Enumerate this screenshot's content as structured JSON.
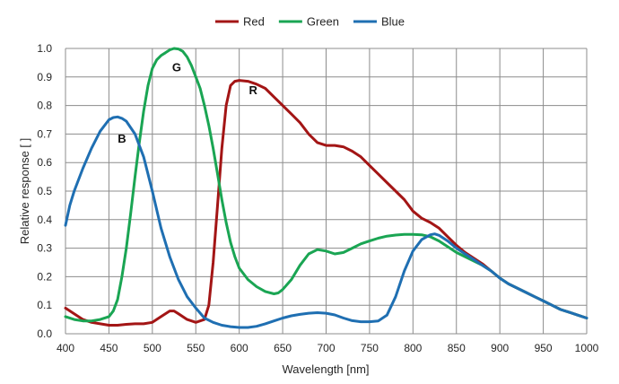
{
  "chart_data": {
    "type": "line",
    "xlabel": "Wavelength [nm]",
    "ylabel": "Relative response [ ]",
    "xlim": [
      400,
      1000
    ],
    "ylim": [
      0,
      1.0
    ],
    "x_ticks": [
      "400",
      "450",
      "500",
      "550",
      "600",
      "650",
      "700",
      "750",
      "800",
      "850",
      "900",
      "950",
      "1000"
    ],
    "y_ticks": [
      "0.0",
      "0.1",
      "0.2",
      "0.3",
      "0.4",
      "0.5",
      "0.6",
      "0.7",
      "0.8",
      "0.9",
      "1.0"
    ],
    "grid": true,
    "legend_position": "top-center",
    "series": [
      {
        "name": "Red",
        "color": "#a31515",
        "points": [
          [
            400,
            0.09
          ],
          [
            410,
            0.07
          ],
          [
            420,
            0.05
          ],
          [
            430,
            0.04
          ],
          [
            440,
            0.035
          ],
          [
            450,
            0.03
          ],
          [
            460,
            0.03
          ],
          [
            470,
            0.033
          ],
          [
            480,
            0.035
          ],
          [
            490,
            0.035
          ],
          [
            500,
            0.04
          ],
          [
            510,
            0.06
          ],
          [
            520,
            0.08
          ],
          [
            525,
            0.08
          ],
          [
            530,
            0.07
          ],
          [
            540,
            0.05
          ],
          [
            550,
            0.04
          ],
          [
            560,
            0.05
          ],
          [
            565,
            0.1
          ],
          [
            570,
            0.25
          ],
          [
            575,
            0.45
          ],
          [
            580,
            0.65
          ],
          [
            585,
            0.8
          ],
          [
            590,
            0.87
          ],
          [
            595,
            0.885
          ],
          [
            600,
            0.888
          ],
          [
            610,
            0.885
          ],
          [
            620,
            0.875
          ],
          [
            630,
            0.86
          ],
          [
            640,
            0.83
          ],
          [
            650,
            0.8
          ],
          [
            660,
            0.77
          ],
          [
            670,
            0.74
          ],
          [
            680,
            0.7
          ],
          [
            690,
            0.67
          ],
          [
            700,
            0.66
          ],
          [
            710,
            0.66
          ],
          [
            720,
            0.655
          ],
          [
            730,
            0.64
          ],
          [
            740,
            0.62
          ],
          [
            750,
            0.59
          ],
          [
            760,
            0.56
          ],
          [
            770,
            0.53
          ],
          [
            780,
            0.5
          ],
          [
            790,
            0.47
          ],
          [
            800,
            0.43
          ],
          [
            810,
            0.405
          ],
          [
            820,
            0.39
          ],
          [
            830,
            0.37
          ],
          [
            840,
            0.34
          ],
          [
            850,
            0.31
          ],
          [
            860,
            0.285
          ],
          [
            870,
            0.265
          ],
          [
            880,
            0.245
          ],
          [
            890,
            0.22
          ],
          [
            900,
            0.195
          ],
          [
            910,
            0.175
          ],
          [
            920,
            0.16
          ],
          [
            930,
            0.145
          ],
          [
            940,
            0.13
          ],
          [
            950,
            0.115
          ],
          [
            960,
            0.1
          ],
          [
            970,
            0.085
          ],
          [
            980,
            0.075
          ],
          [
            990,
            0.065
          ],
          [
            1000,
            0.055
          ]
        ]
      },
      {
        "name": "Green",
        "color": "#1aa553",
        "points": [
          [
            400,
            0.06
          ],
          [
            410,
            0.05
          ],
          [
            420,
            0.045
          ],
          [
            430,
            0.045
          ],
          [
            440,
            0.05
          ],
          [
            450,
            0.06
          ],
          [
            455,
            0.08
          ],
          [
            460,
            0.12
          ],
          [
            465,
            0.2
          ],
          [
            470,
            0.3
          ],
          [
            475,
            0.42
          ],
          [
            480,
            0.55
          ],
          [
            485,
            0.67
          ],
          [
            490,
            0.78
          ],
          [
            495,
            0.87
          ],
          [
            500,
            0.93
          ],
          [
            505,
            0.96
          ],
          [
            510,
            0.975
          ],
          [
            515,
            0.985
          ],
          [
            520,
            0.995
          ],
          [
            525,
            1.0
          ],
          [
            530,
            0.998
          ],
          [
            535,
            0.99
          ],
          [
            540,
            0.97
          ],
          [
            545,
            0.94
          ],
          [
            550,
            0.9
          ],
          [
            555,
            0.86
          ],
          [
            560,
            0.8
          ],
          [
            565,
            0.73
          ],
          [
            570,
            0.65
          ],
          [
            575,
            0.56
          ],
          [
            580,
            0.47
          ],
          [
            585,
            0.39
          ],
          [
            590,
            0.32
          ],
          [
            595,
            0.27
          ],
          [
            600,
            0.23
          ],
          [
            610,
            0.19
          ],
          [
            620,
            0.165
          ],
          [
            630,
            0.148
          ],
          [
            640,
            0.14
          ],
          [
            645,
            0.143
          ],
          [
            650,
            0.155
          ],
          [
            660,
            0.19
          ],
          [
            670,
            0.24
          ],
          [
            680,
            0.28
          ],
          [
            690,
            0.295
          ],
          [
            700,
            0.29
          ],
          [
            710,
            0.28
          ],
          [
            720,
            0.285
          ],
          [
            730,
            0.3
          ],
          [
            740,
            0.315
          ],
          [
            750,
            0.325
          ],
          [
            760,
            0.335
          ],
          [
            770,
            0.342
          ],
          [
            780,
            0.346
          ],
          [
            790,
            0.348
          ],
          [
            800,
            0.348
          ],
          [
            810,
            0.347
          ],
          [
            820,
            0.34
          ],
          [
            830,
            0.325
          ],
          [
            840,
            0.305
          ],
          [
            850,
            0.285
          ],
          [
            860,
            0.27
          ],
          [
            870,
            0.255
          ],
          [
            880,
            0.24
          ],
          [
            890,
            0.22
          ],
          [
            900,
            0.195
          ],
          [
            910,
            0.175
          ],
          [
            920,
            0.16
          ],
          [
            930,
            0.145
          ],
          [
            940,
            0.13
          ],
          [
            950,
            0.115
          ],
          [
            960,
            0.1
          ],
          [
            970,
            0.085
          ],
          [
            980,
            0.075
          ],
          [
            990,
            0.065
          ],
          [
            1000,
            0.055
          ]
        ]
      },
      {
        "name": "Blue",
        "color": "#1f6fb2",
        "points": [
          [
            400,
            0.38
          ],
          [
            405,
            0.45
          ],
          [
            410,
            0.5
          ],
          [
            420,
            0.58
          ],
          [
            430,
            0.65
          ],
          [
            440,
            0.71
          ],
          [
            450,
            0.75
          ],
          [
            455,
            0.758
          ],
          [
            460,
            0.76
          ],
          [
            465,
            0.755
          ],
          [
            470,
            0.745
          ],
          [
            480,
            0.7
          ],
          [
            490,
            0.62
          ],
          [
            500,
            0.5
          ],
          [
            510,
            0.37
          ],
          [
            520,
            0.27
          ],
          [
            530,
            0.19
          ],
          [
            540,
            0.13
          ],
          [
            550,
            0.09
          ],
          [
            560,
            0.055
          ],
          [
            570,
            0.04
          ],
          [
            580,
            0.03
          ],
          [
            590,
            0.025
          ],
          [
            600,
            0.022
          ],
          [
            610,
            0.022
          ],
          [
            620,
            0.026
          ],
          [
            630,
            0.035
          ],
          [
            640,
            0.045
          ],
          [
            650,
            0.055
          ],
          [
            660,
            0.063
          ],
          [
            670,
            0.068
          ],
          [
            680,
            0.072
          ],
          [
            690,
            0.074
          ],
          [
            700,
            0.072
          ],
          [
            710,
            0.066
          ],
          [
            720,
            0.055
          ],
          [
            730,
            0.046
          ],
          [
            740,
            0.042
          ],
          [
            750,
            0.042
          ],
          [
            760,
            0.045
          ],
          [
            770,
            0.065
          ],
          [
            780,
            0.13
          ],
          [
            790,
            0.22
          ],
          [
            800,
            0.29
          ],
          [
            810,
            0.33
          ],
          [
            820,
            0.347
          ],
          [
            825,
            0.35
          ],
          [
            830,
            0.345
          ],
          [
            840,
            0.325
          ],
          [
            850,
            0.3
          ],
          [
            860,
            0.28
          ],
          [
            870,
            0.26
          ],
          [
            880,
            0.24
          ],
          [
            890,
            0.22
          ],
          [
            900,
            0.195
          ],
          [
            910,
            0.175
          ],
          [
            920,
            0.16
          ],
          [
            930,
            0.145
          ],
          [
            940,
            0.13
          ],
          [
            950,
            0.115
          ],
          [
            960,
            0.1
          ],
          [
            970,
            0.085
          ],
          [
            980,
            0.075
          ],
          [
            990,
            0.065
          ],
          [
            1000,
            0.055
          ]
        ]
      }
    ],
    "annotations": [
      {
        "text": "G",
        "x": 528,
        "y": 0.92
      },
      {
        "text": "R",
        "x": 616,
        "y": 0.84
      },
      {
        "text": "B",
        "x": 465,
        "y": 0.67
      }
    ]
  }
}
